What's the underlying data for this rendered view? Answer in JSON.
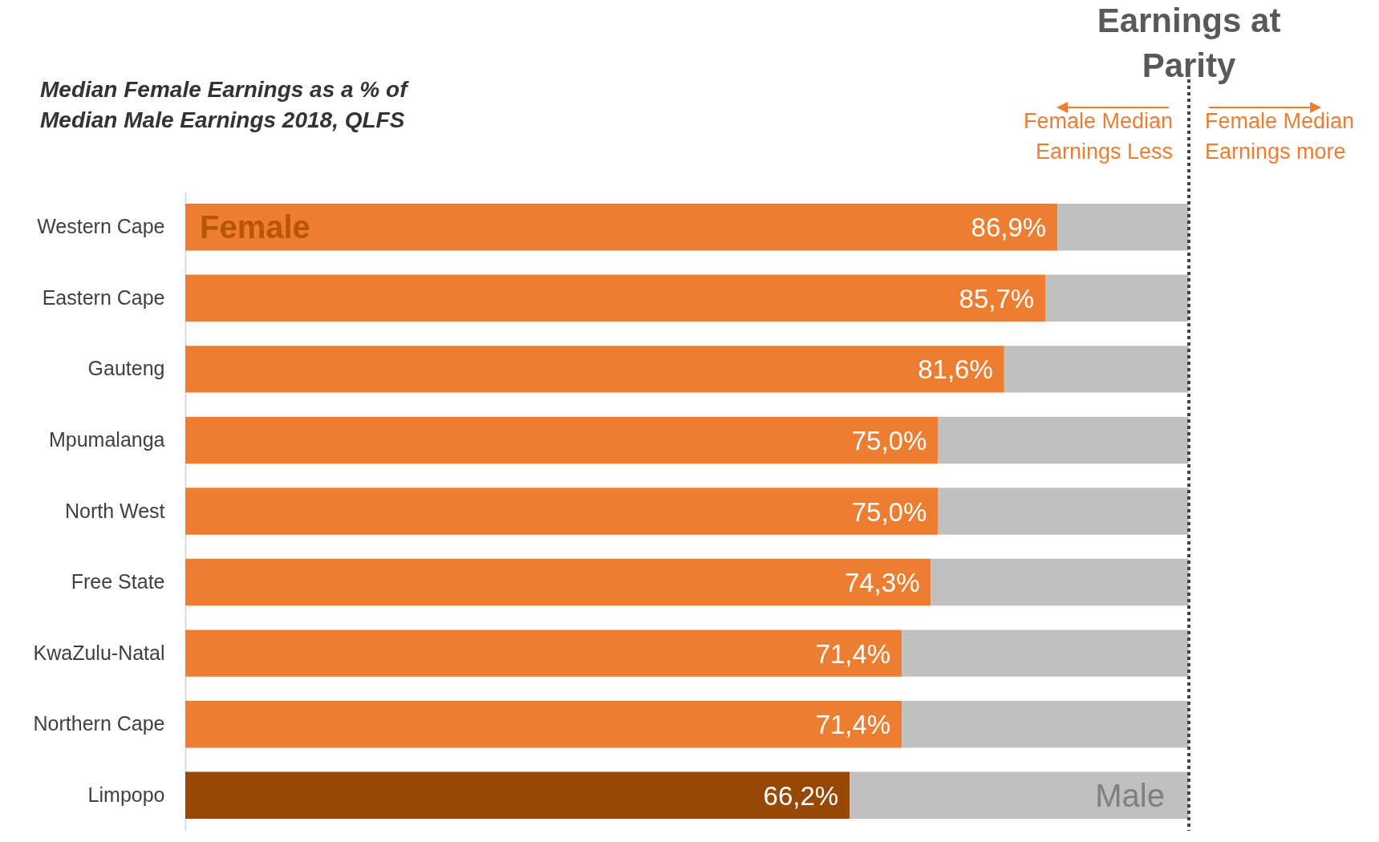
{
  "chart_data": {
    "type": "bar",
    "orientation": "horizontal",
    "stacked": true,
    "tick_labels": "y",
    "title": "Median Female Earnings as a % of Median Male Earnings 2018, QLFS",
    "categories": [
      "Western Cape",
      "Eastern Cape",
      "Gauteng",
      "Mpumalanga",
      "North West",
      "Free State",
      "KwaZulu-Natal",
      "Northern Cape",
      "Limpopo"
    ],
    "xlim": [
      0,
      100
    ],
    "series": [
      {
        "name": "Female",
        "colors": [
          "#ed7d31",
          "#ed7d31",
          "#ed7d31",
          "#ed7d31",
          "#ed7d31",
          "#ed7d31",
          "#ed7d31",
          "#ed7d31",
          "#974706"
        ],
        "values": [
          86.9,
          85.7,
          81.6,
          75.0,
          75.0,
          74.3,
          71.4,
          71.4,
          66.2
        ],
        "value_labels": [
          "86,9%",
          "85,7%",
          "81,6%",
          "75,0%",
          "75,0%",
          "74,3%",
          "71,4%",
          "71,4%",
          "66,2%"
        ]
      },
      {
        "name": "Male",
        "color": "#bfbfbf",
        "values": [
          13.1,
          14.3,
          18.4,
          25.0,
          25.0,
          25.7,
          28.6,
          28.6,
          33.8
        ]
      }
    ],
    "ref_lines": [
      {
        "axis": "x",
        "value": 100,
        "label": "Earnings at Parity",
        "color": "#404040",
        "line_style": "dotted"
      }
    ],
    "annotations": [
      "Female Median Earnings Less",
      "Female Median Earnings more"
    ]
  }
}
